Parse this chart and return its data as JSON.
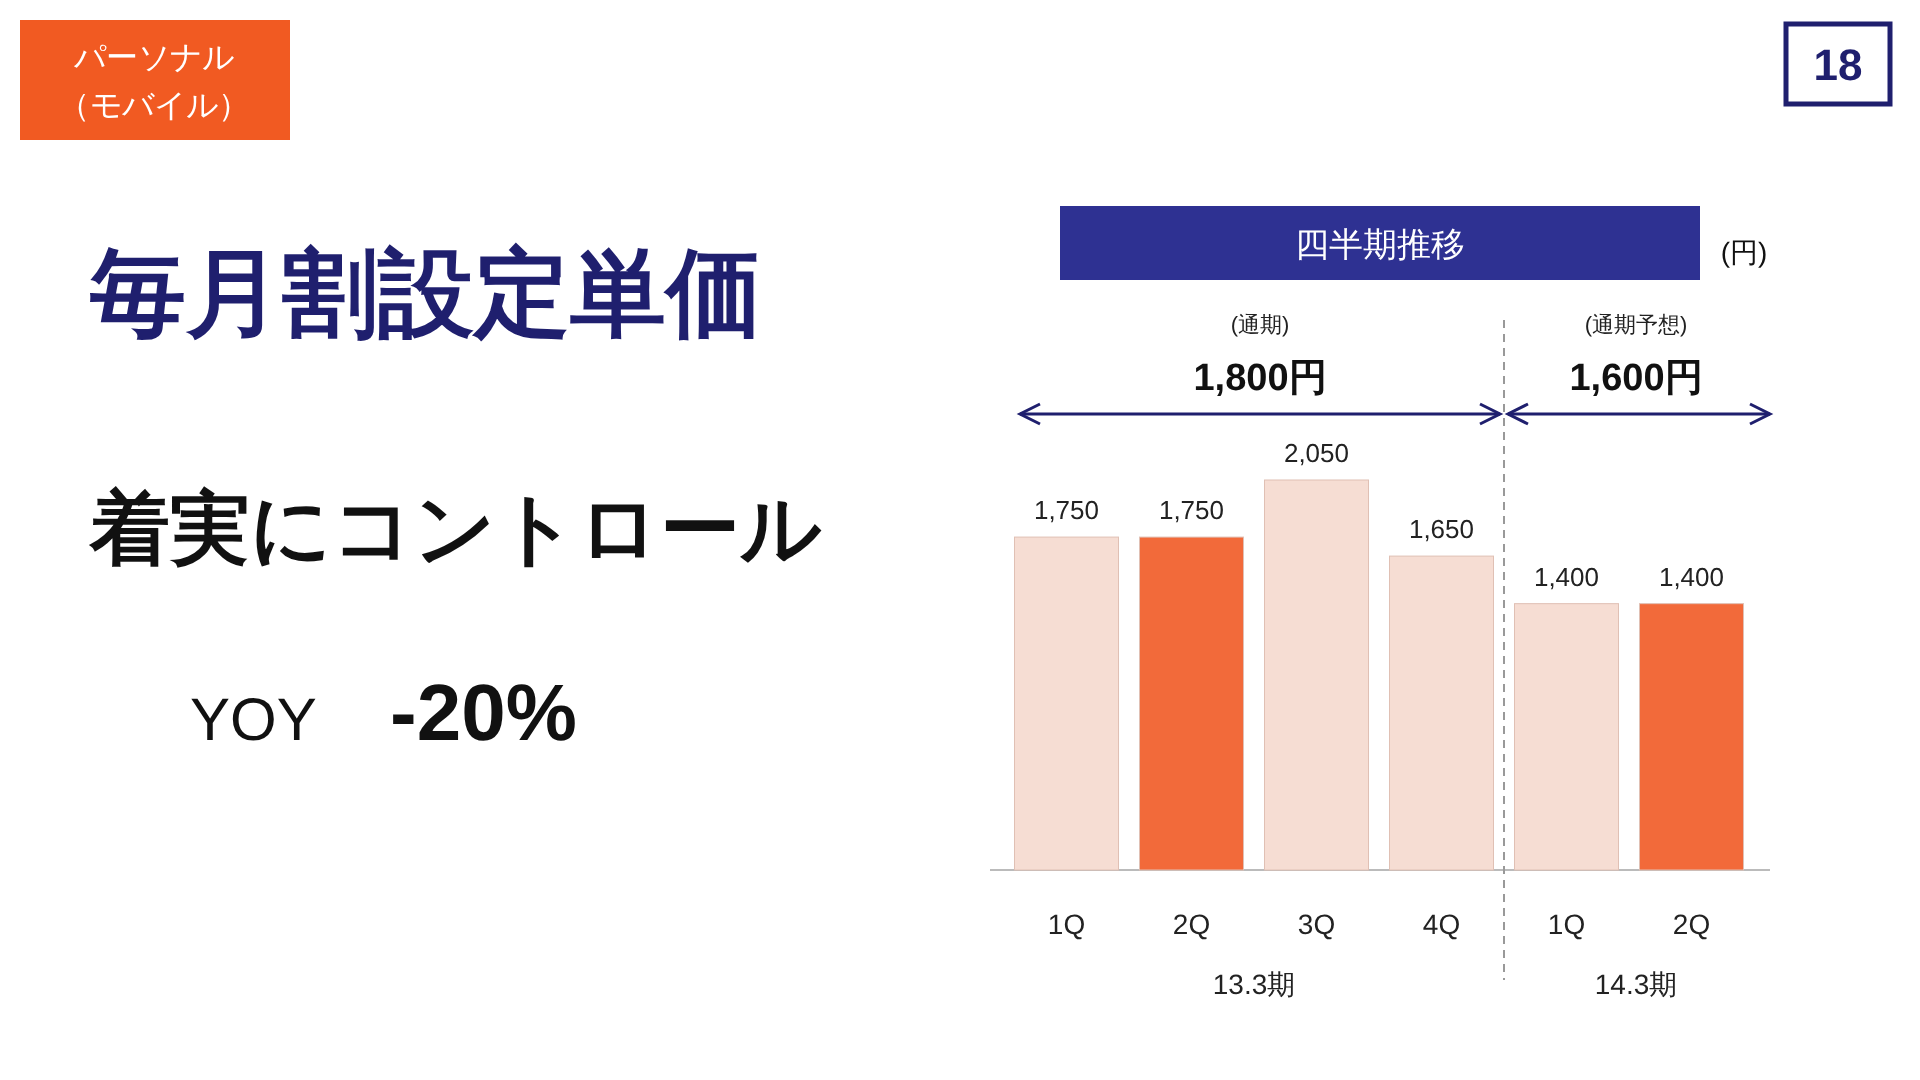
{
  "chart_data": {
    "type": "bar",
    "title": "毎月割設定単価",
    "subtitle": "着実にコントロール",
    "categories": [
      "1Q",
      "2Q",
      "3Q",
      "4Q",
      "1Q",
      "2Q"
    ],
    "values": [
      1750,
      1750,
      2050,
      1650,
      1400,
      1400
    ],
    "colors": [
      "#f6ddd3",
      "#f26a3a",
      "#f6ddd3",
      "#f6ddd3",
      "#f6ddd3",
      "#f26a3a"
    ],
    "value_labels": [
      "1,750",
      "1,750",
      "2,050",
      "1,650",
      "1,400",
      "1,400"
    ],
    "annotations": [
      "パーソナル",
      "（モバイル）",
      "18",
      "YOY",
      "-20%",
      "四半期推移",
      "(円)",
      "(通期)",
      "1,800円",
      "(通期予想)",
      "1,600円",
      "13.3期",
      "14.3期"
    ]
  }
}
